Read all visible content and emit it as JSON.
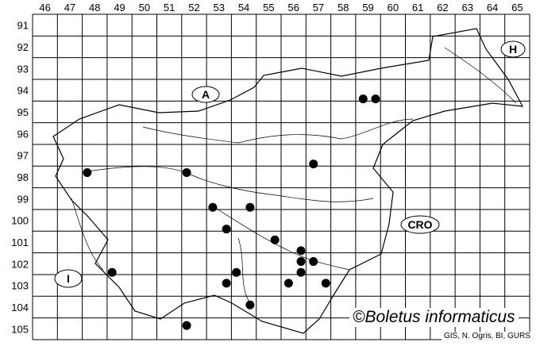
{
  "map": {
    "columns": [
      "46",
      "47",
      "48",
      "49",
      "50",
      "51",
      "52",
      "53",
      "54",
      "55",
      "56",
      "57",
      "58",
      "59",
      "60",
      "61",
      "62",
      "63",
      "64",
      "65"
    ],
    "rows": [
      "91",
      "92",
      "93",
      "94",
      "95",
      "96",
      "97",
      "98",
      "99",
      "100",
      "101",
      "102",
      "103",
      "104",
      "105"
    ],
    "region_labels": {
      "austria": "A",
      "hungary": "H",
      "croatia": "CRO",
      "italy": "I"
    },
    "dot_color": "#000000",
    "records": [
      {
        "col": 58.8,
        "row": 94.4
      },
      {
        "col": 59.3,
        "row": 94.4
      },
      {
        "col": 56.8,
        "row": 97.4
      },
      {
        "col": 47.7,
        "row": 97.8
      },
      {
        "col": 51.7,
        "row": 97.8
      },
      {
        "col": 52.75,
        "row": 99.4
      },
      {
        "col": 54.25,
        "row": 99.4
      },
      {
        "col": 53.3,
        "row": 100.4
      },
      {
        "col": 55.25,
        "row": 100.9
      },
      {
        "col": 56.3,
        "row": 101.4
      },
      {
        "col": 56.3,
        "row": 101.9
      },
      {
        "col": 56.8,
        "row": 101.9
      },
      {
        "col": 48.7,
        "row": 102.4
      },
      {
        "col": 56.3,
        "row": 102.4
      },
      {
        "col": 53.7,
        "row": 102.4
      },
      {
        "col": 53.3,
        "row": 102.9
      },
      {
        "col": 55.8,
        "row": 102.9
      },
      {
        "col": 57.3,
        "row": 102.9
      },
      {
        "col": 54.25,
        "row": 103.9
      },
      {
        "col": 51.7,
        "row": 104.85
      }
    ]
  },
  "credit": {
    "title": "©Boletus informaticus",
    "source": "GIS, N. Ogris, BI, GURS"
  }
}
